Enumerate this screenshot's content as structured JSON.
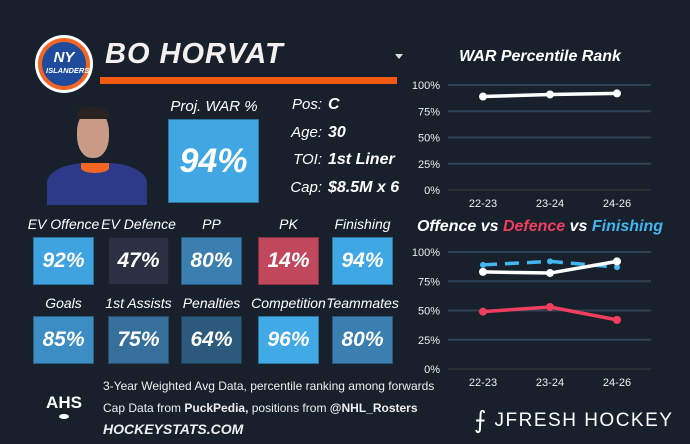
{
  "player": {
    "name": "BO HORVAT",
    "team_logo_text": "NY ISLANDERS",
    "proj_war_label": "Proj. WAR %",
    "proj_war": "94%",
    "proj_war_color": "#41a7e3",
    "info": [
      {
        "k": "Pos:",
        "v": "C"
      },
      {
        "k": "Age:",
        "v": "30"
      },
      {
        "k": "TOI:",
        "v": "1st Liner"
      },
      {
        "k": "Cap:",
        "v": "$8.5M x 6"
      }
    ]
  },
  "tiles": [
    {
      "label": "EV Offence",
      "value": "92%",
      "color": "#3fa3e0"
    },
    {
      "label": "EV Defence",
      "value": "47%",
      "color": "#2b3142"
    },
    {
      "label": "PP",
      "value": "80%",
      "color": "#3a7fb0"
    },
    {
      "label": "PK",
      "value": "14%",
      "color": "#c0475c"
    },
    {
      "label": "Finishing",
      "value": "94%",
      "color": "#3fa7e3"
    },
    {
      "label": "Goals",
      "value": "85%",
      "color": "#3b8dc4"
    },
    {
      "label": "1st Assists",
      "value": "75%",
      "color": "#376f9b"
    },
    {
      "label": "Penalties",
      "value": "64%",
      "color": "#2c5a7c"
    },
    {
      "label": "Competition",
      "value": "96%",
      "color": "#40a9e6"
    },
    {
      "label": "Teammates",
      "value": "80%",
      "color": "#3a7fb0"
    }
  ],
  "footer": {
    "line1": "3-Year Weighted Avg Data, percentile ranking among forwards",
    "line2_a": "Cap Data from ",
    "line2_b": "PuckPedia,",
    "line2_c": " positions from ",
    "line2_d": "@NHL_Rosters",
    "line3": "HOCKEYSTATS.COM",
    "ahs": "AHS",
    "brand": "JFRESH HOCKEY"
  },
  "chart_data": [
    {
      "type": "line",
      "title": "WAR Percentile Rank",
      "categories": [
        "22-23",
        "23-24",
        "24-26"
      ],
      "yticks": [
        "0%",
        "25%",
        "50%",
        "75%",
        "100%"
      ],
      "ylim": [
        0,
        100
      ],
      "grid": true,
      "series": [
        {
          "values": [
            89,
            91,
            92
          ],
          "color": "#ffffff",
          "dash": false
        }
      ]
    },
    {
      "type": "line",
      "title_parts": [
        {
          "t": "Offence",
          "c": "#ffffff"
        },
        {
          "t": " vs ",
          "c": "#ffffff"
        },
        {
          "t": "Defence",
          "c": "#f03e5f"
        },
        {
          "t": " vs ",
          "c": "#ffffff"
        },
        {
          "t": "Finishing",
          "c": "#41b6ef"
        }
      ],
      "categories": [
        "22-23",
        "23-24",
        "24-26"
      ],
      "yticks": [
        "0%",
        "25%",
        "50%",
        "75%",
        "100%"
      ],
      "ylim": [
        0,
        100
      ],
      "grid": true,
      "series": [
        {
          "name": "Finishing",
          "values": [
            89,
            92,
            87
          ],
          "color": "#41b6ef",
          "dash": true
        },
        {
          "name": "Offence",
          "values": [
            83,
            82,
            92
          ],
          "color": "#ffffff",
          "dash": false
        },
        {
          "name": "Defence",
          "values": [
            49,
            53,
            42
          ],
          "color": "#f03e5f",
          "dash": false
        }
      ]
    }
  ]
}
